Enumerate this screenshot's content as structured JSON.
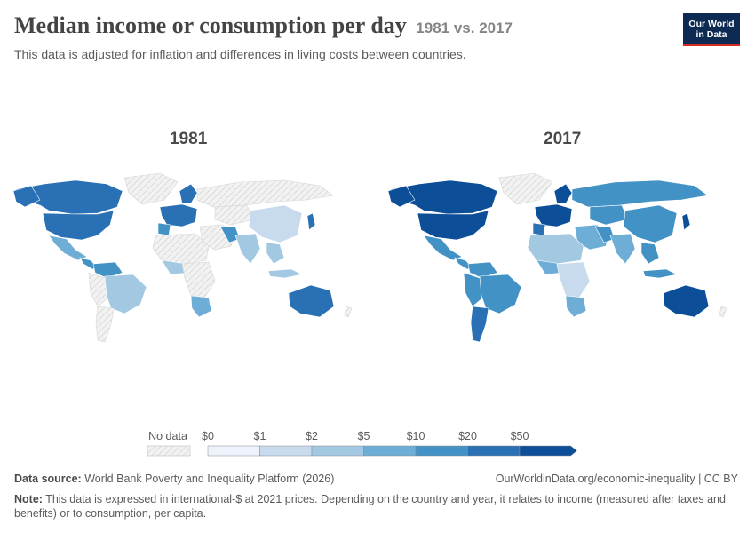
{
  "header": {
    "title": "Median income or consumption per day",
    "time_range": "1981 vs. 2017",
    "subtitle": "This data is adjusted for inflation and differences in living costs between countries."
  },
  "logo": {
    "line1": "Our World",
    "line2": "in Data"
  },
  "maps": [
    {
      "year_label": "1981"
    },
    {
      "year_label": "2017"
    }
  ],
  "legend": {
    "no_data_label": "No data",
    "bins": [
      {
        "label": "$0",
        "color": "#eef3fb"
      },
      {
        "label": "$1",
        "color": "#c7daee"
      },
      {
        "label": "$2",
        "color": "#a2c8e2"
      },
      {
        "label": "$5",
        "color": "#6eaed6"
      },
      {
        "label": "$10",
        "color": "#4292c6"
      },
      {
        "label": "$20",
        "color": "#2a70b4"
      },
      {
        "label": "$50",
        "color": "#0c4e98"
      }
    ]
  },
  "colors": {
    "no_data_fill": "#eeeeee",
    "no_data_hatch": "#c8c8c8",
    "land_outline": "#ffffff"
  },
  "footer": {
    "source_label": "Data source:",
    "source_text": "World Bank Poverty and Inequality Platform (2026)",
    "url_text": "OurWorldinData.org/economic-inequality | CC BY",
    "note_label": "Note:",
    "note_text": "This data is expressed in international-$ at 2021 prices. Depending on the country and year, it relates to income (measured after taxes and benefits) or to consumption, per capita."
  }
}
